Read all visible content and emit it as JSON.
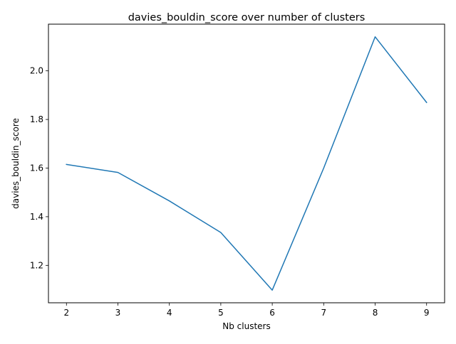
{
  "chart_data": {
    "type": "line",
    "title": "davies_bouldin_score over number of clusters",
    "xlabel": "Nb clusters",
    "ylabel": "davies_bouldin_score",
    "x": [
      2,
      3,
      4,
      5,
      6,
      7,
      8,
      9
    ],
    "series": [
      {
        "values": [
          1.615,
          1.582,
          1.465,
          1.335,
          1.098,
          1.6,
          2.14,
          1.87
        ],
        "color": "#1f77b4"
      }
    ],
    "xlim": [
      1.65,
      9.35
    ],
    "ylim": [
      1.046,
      2.192
    ],
    "xticks": [
      "2",
      "3",
      "4",
      "5",
      "6",
      "7",
      "8",
      "9"
    ],
    "yticks": [
      "1.2",
      "1.4",
      "1.6",
      "1.8",
      "2.0"
    ],
    "grid": false,
    "legend": "none"
  }
}
